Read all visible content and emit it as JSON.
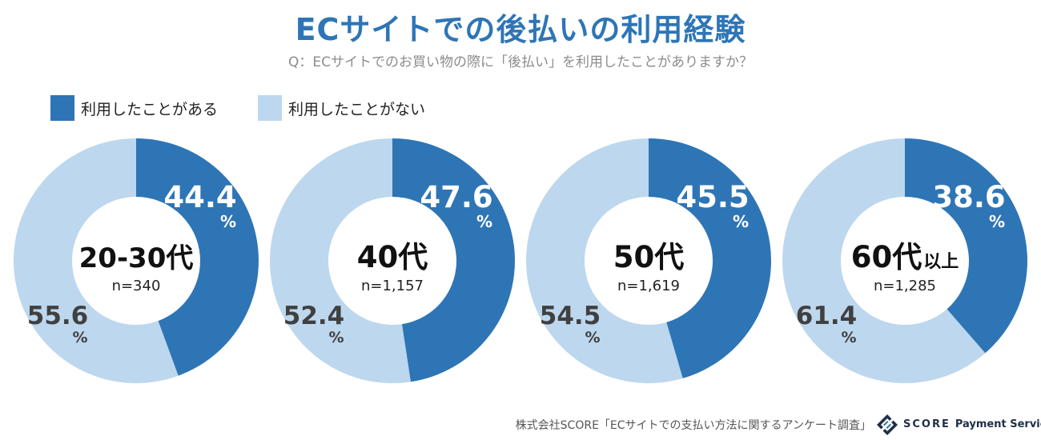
{
  "colors": {
    "used": "#2e75b6",
    "not_used": "#bdd7ee",
    "title": "#2e75b6",
    "pct_used": "#ffffff",
    "pct_not_used": "#404040"
  },
  "title": "ECサイトでの後払いの利用経験",
  "subtitle": "Q：ECサイトでのお買い物の際に「後払い」を利用したことがありますか？",
  "legend": [
    {
      "label": "利用したことがある",
      "color": "#2e75b6"
    },
    {
      "label": "利用したことがない",
      "color": "#bdd7ee"
    }
  ],
  "chart_data": {
    "type": "donut",
    "title": "ECサイトでの後払いの利用経験",
    "unit": "%",
    "series": [
      "利用したことがある",
      "利用したことがない"
    ],
    "charts": [
      {
        "age": "20-30代",
        "age_suffix": "",
        "n": "n=340",
        "values": [
          44.4,
          55.6
        ]
      },
      {
        "age": "40代",
        "age_suffix": "",
        "n": "n=1,157",
        "values": [
          47.6,
          52.4
        ]
      },
      {
        "age": "50代",
        "age_suffix": "",
        "n": "n=1,619",
        "values": [
          45.5,
          54.5
        ]
      },
      {
        "age": "60代",
        "age_suffix": "以上",
        "n": "n=1,285",
        "values": [
          38.6,
          61.4
        ]
      }
    ]
  },
  "footer": {
    "source": "株式会社SCORE「ECサイトでの支払い方法に関するアンケート調査」",
    "brand_name": "SCORE",
    "brand_sub": "Payment Service"
  }
}
